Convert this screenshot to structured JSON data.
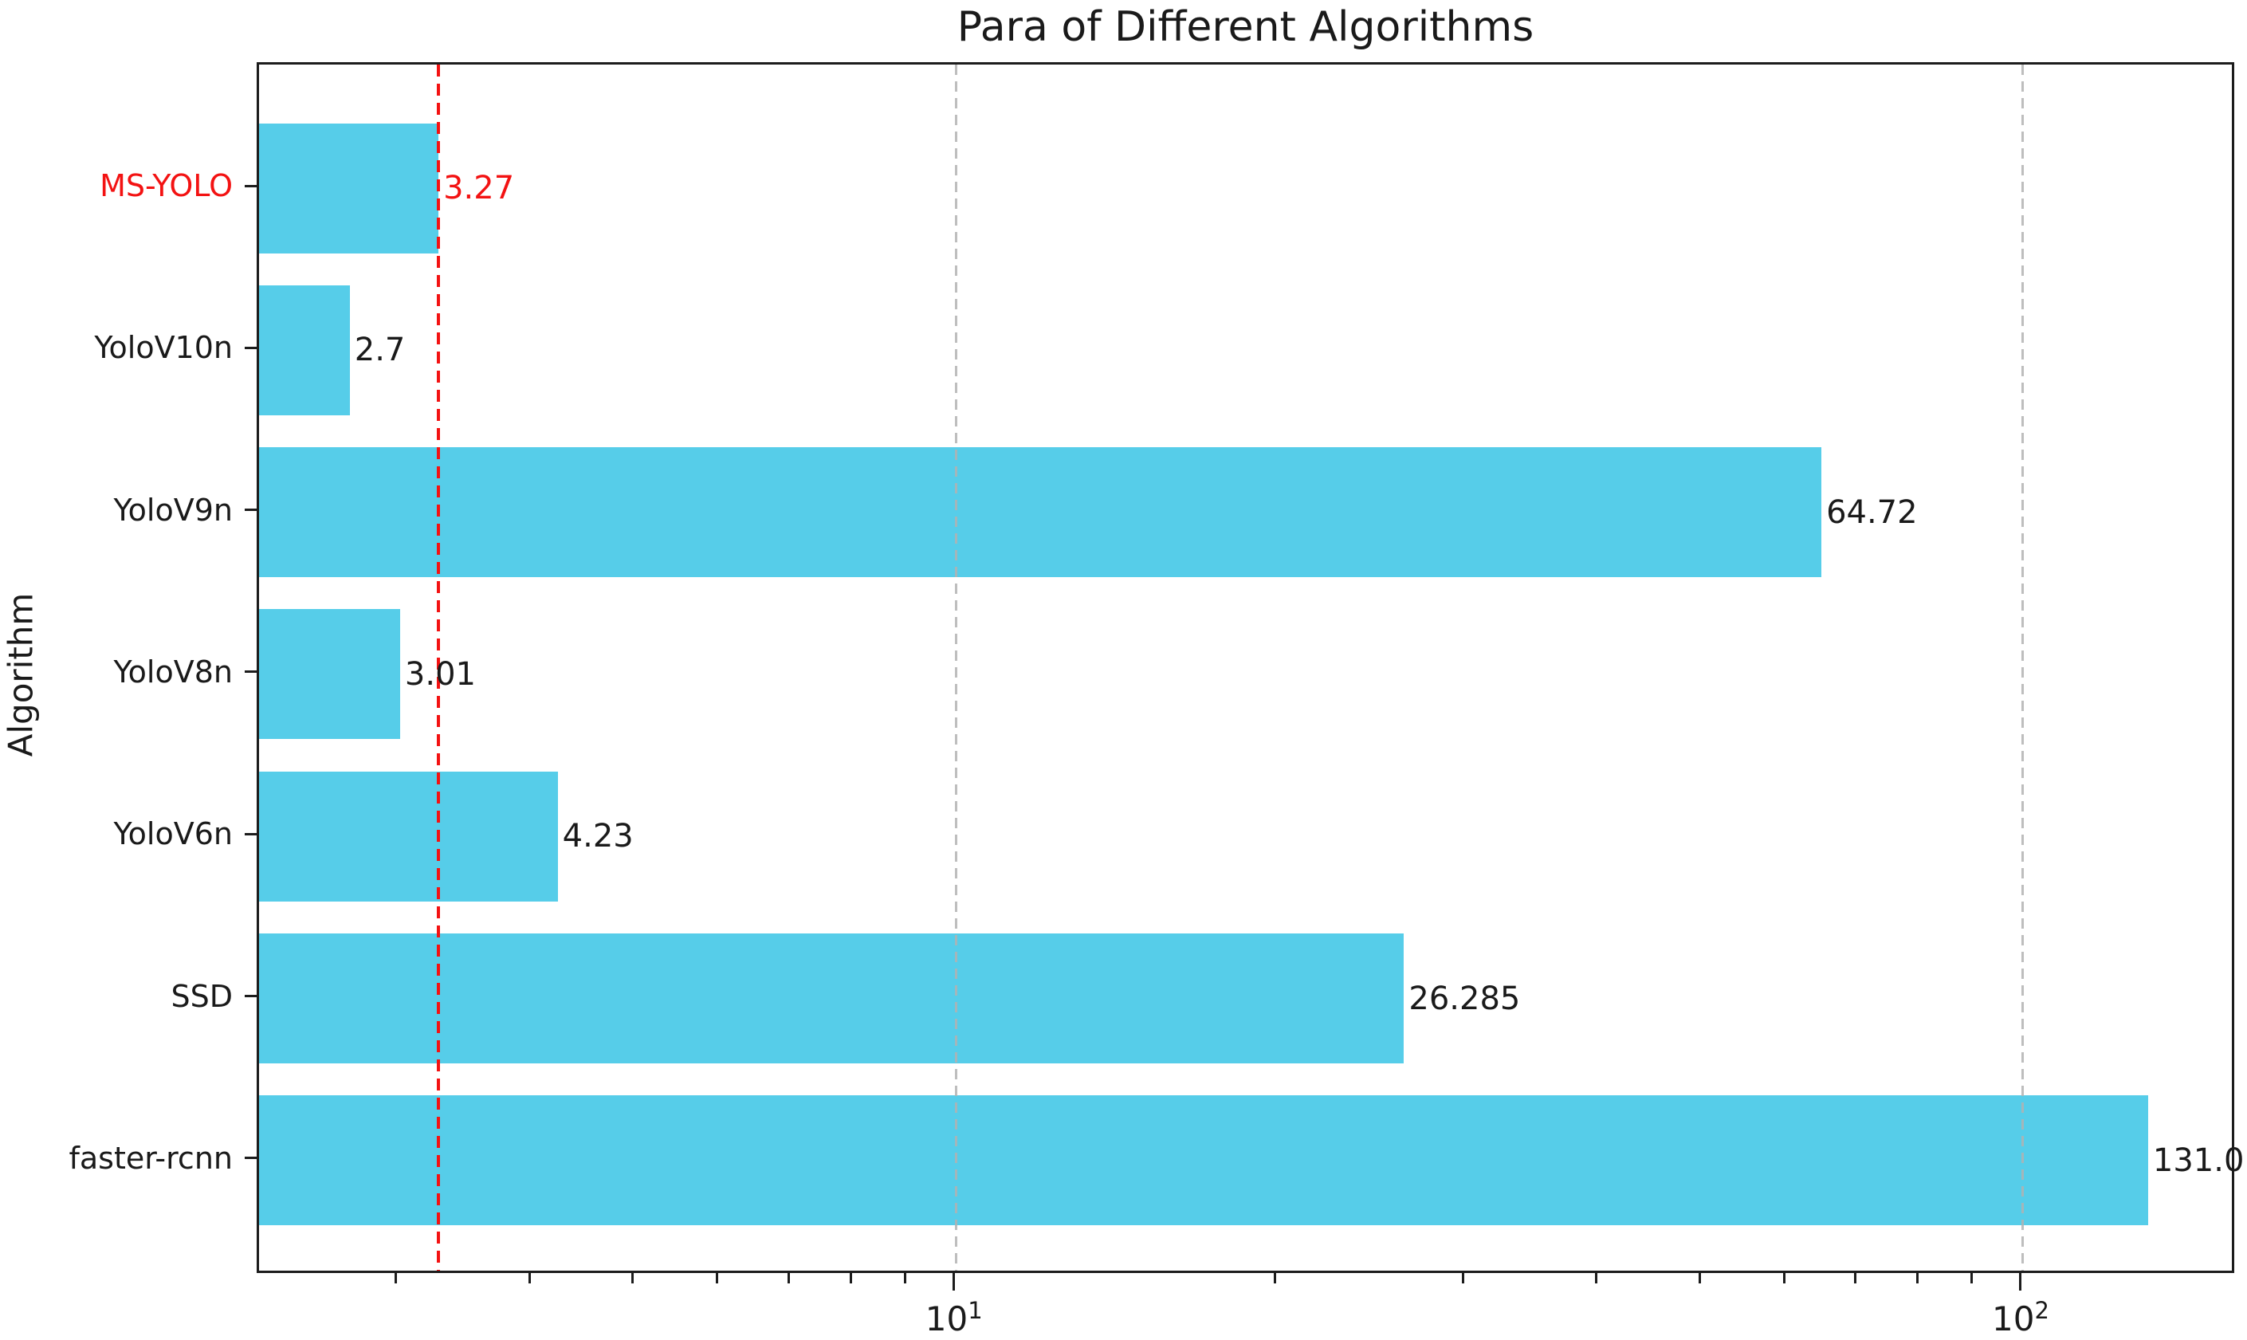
{
  "chart_data": {
    "type": "bar",
    "orientation": "horizontal",
    "title": "Para of Different Algorithms",
    "xlabel": "",
    "ylabel": "Algorithm",
    "x_scale": "log",
    "x_range": [
      2.22,
      158.6
    ],
    "grid": "major-x dashed vertical",
    "legend": "none",
    "categories": [
      "MS-YOLO",
      "YoloV10n",
      "YoloV9n",
      "YoloV8n",
      "YoloV6n",
      "SSD",
      "faster-rcnn"
    ],
    "values": [
      3.27,
      2.7,
      64.72,
      3.01,
      4.23,
      26.285,
      131.0
    ],
    "value_labels": [
      "3.27",
      "2.7",
      "64.72",
      "3.01",
      "4.23",
      "26.285",
      "131.0"
    ],
    "highlight_index": 0,
    "reference_line": {
      "value": 3.27,
      "style": "dashed",
      "color": "#f31212"
    },
    "x_major_ticks": [
      {
        "base": "10",
        "exponent": "1",
        "value": 10
      },
      {
        "base": "10",
        "exponent": "2",
        "value": 100
      }
    ],
    "x_minor_ticks": [
      3,
      4,
      5,
      6,
      7,
      8,
      9,
      20,
      30,
      40,
      50,
      60,
      70,
      80,
      90
    ],
    "colors": {
      "bar": "#56CDE9",
      "highlight_text": "#f31212",
      "grid": "#b2b2b2",
      "axis": "#1c1c1c",
      "text": "#1a1a1a"
    }
  }
}
